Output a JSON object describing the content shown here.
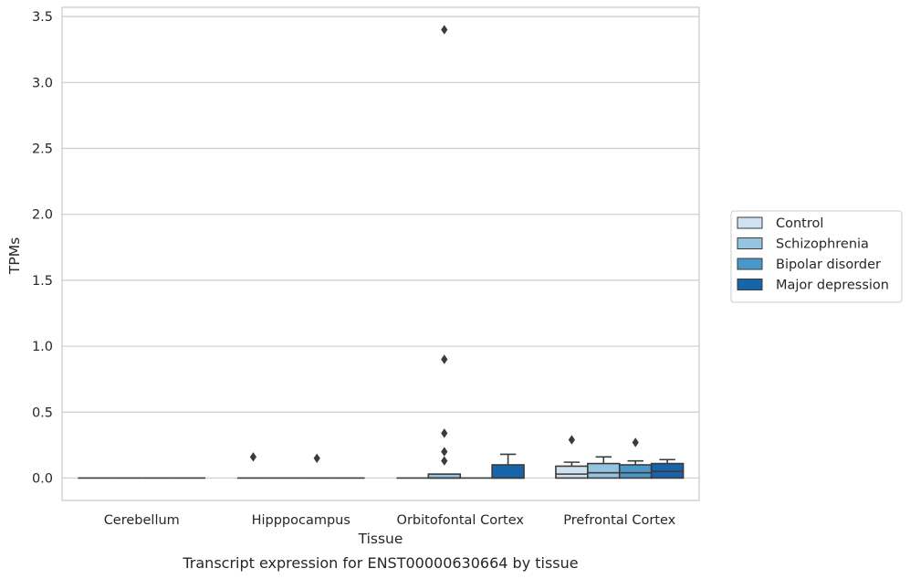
{
  "chart_data": {
    "type": "box",
    "caption": "Transcript expression for ENST00000630664 by tissue",
    "xlabel": "Tissue",
    "ylabel": "TPMs",
    "ylim": [
      -0.17,
      3.57
    ],
    "yticks": [
      0.0,
      0.5,
      1.0,
      1.5,
      2.0,
      2.5,
      3.0,
      3.5
    ],
    "ytick_labels": [
      "0.0",
      "0.5",
      "1.0",
      "1.5",
      "2.0",
      "2.5",
      "3.0",
      "3.5"
    ],
    "grid": "horizontal",
    "legend_position": "right",
    "categories": [
      "Cerebellum",
      "Hipppocampus",
      "Orbitofontal Cortex",
      "Prefrontal Cortex"
    ],
    "series": [
      {
        "name": "Control",
        "color": "#d0e1f2",
        "boxes": [
          {
            "q1": 0,
            "median": 0,
            "q3": 0,
            "whisker_low": 0,
            "whisker_high": 0,
            "outliers": []
          },
          {
            "q1": 0,
            "median": 0,
            "q3": 0,
            "whisker_low": 0,
            "whisker_high": 0,
            "outliers": [
              0.16
            ]
          },
          {
            "q1": 0,
            "median": 0,
            "q3": 0,
            "whisker_low": 0,
            "whisker_high": 0,
            "outliers": []
          },
          {
            "q1": 0,
            "median": 0.03,
            "q3": 0.09,
            "whisker_low": 0,
            "whisker_high": 0.12,
            "outliers": [
              0.29
            ]
          }
        ]
      },
      {
        "name": "Schizophrenia",
        "color": "#94c4df",
        "boxes": [
          {
            "q1": 0,
            "median": 0,
            "q3": 0,
            "whisker_low": 0,
            "whisker_high": 0,
            "outliers": []
          },
          {
            "q1": 0,
            "median": 0,
            "q3": 0,
            "whisker_low": 0,
            "whisker_high": 0,
            "outliers": []
          },
          {
            "q1": 0,
            "median": 0,
            "q3": 0.03,
            "whisker_low": 0,
            "whisker_high": 0.03,
            "outliers": [
              3.4,
              0.9,
              0.34,
              0.2,
              0.13
            ]
          },
          {
            "q1": 0,
            "median": 0.04,
            "q3": 0.11,
            "whisker_low": 0,
            "whisker_high": 0.16,
            "outliers": []
          }
        ]
      },
      {
        "name": "Bipolar disorder",
        "color": "#4a98c9",
        "boxes": [
          {
            "q1": 0,
            "median": 0,
            "q3": 0,
            "whisker_low": 0,
            "whisker_high": 0,
            "outliers": []
          },
          {
            "q1": 0,
            "median": 0,
            "q3": 0,
            "whisker_low": 0,
            "whisker_high": 0,
            "outliers": [
              0.15
            ]
          },
          {
            "q1": 0,
            "median": 0,
            "q3": 0,
            "whisker_low": 0,
            "whisker_high": 0,
            "outliers": []
          },
          {
            "q1": 0,
            "median": 0.04,
            "q3": 0.1,
            "whisker_low": 0,
            "whisker_high": 0.13,
            "outliers": [
              0.27
            ]
          }
        ]
      },
      {
        "name": "Major depression",
        "color": "#1764ab",
        "boxes": [
          {
            "q1": 0,
            "median": 0,
            "q3": 0,
            "whisker_low": 0,
            "whisker_high": 0,
            "outliers": []
          },
          {
            "q1": 0,
            "median": 0,
            "q3": 0,
            "whisker_low": 0,
            "whisker_high": 0,
            "outliers": []
          },
          {
            "q1": 0,
            "median": 0,
            "q3": 0.1,
            "whisker_low": 0,
            "whisker_high": 0.18,
            "outliers": []
          },
          {
            "q1": 0,
            "median": 0.05,
            "q3": 0.11,
            "whisker_low": 0,
            "whisker_high": 0.14,
            "outliers": []
          }
        ]
      }
    ]
  }
}
